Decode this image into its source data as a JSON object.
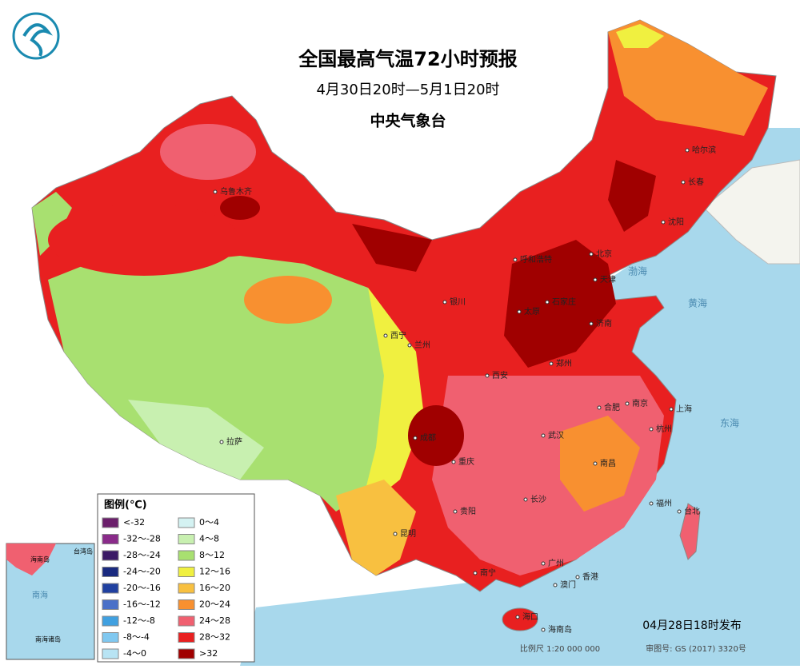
{
  "header": {
    "title": "全国最高气温72小时预报",
    "period": "4月30日20时—5月1日20时",
    "agency": "中央气象台"
  },
  "legend": {
    "title": "图例(℃)",
    "items": [
      {
        "label": "<-32",
        "color": "#6b1f6b"
      },
      {
        "label": "-32～-28",
        "color": "#8a2b8a"
      },
      {
        "label": "-28～-24",
        "color": "#3b1a66"
      },
      {
        "label": "-24～-20",
        "color": "#1a2a80"
      },
      {
        "label": "-20～-16",
        "color": "#2040a0"
      },
      {
        "label": "-16～-12",
        "color": "#4a70c8"
      },
      {
        "label": "-12～-8",
        "color": "#40a0e0"
      },
      {
        "label": "-8～-4",
        "color": "#80c8f0"
      },
      {
        "label": "-4～0",
        "color": "#b8e4f4"
      },
      {
        "label": "0～4",
        "color": "#d4f2f2"
      },
      {
        "label": "4～8",
        "color": "#c8f0b0"
      },
      {
        "label": "8～12",
        "color": "#a8e070"
      },
      {
        "label": "12～16",
        "color": "#f0f040"
      },
      {
        "label": "16～20",
        "color": "#f8c040"
      },
      {
        "label": "20～24",
        "color": "#f89030"
      },
      {
        "label": "24～28",
        "color": "#f06070"
      },
      {
        "label": "28～32",
        "color": "#e82020"
      },
      {
        "label": ">32",
        "color": "#a00000"
      }
    ]
  },
  "cities": [
    "乌鲁木齐",
    "拉萨",
    "西宁",
    "兰州",
    "银川",
    "呼和浩特",
    "北京",
    "天津",
    "石家庄",
    "太原",
    "济南",
    "郑州",
    "西安",
    "成都",
    "重庆",
    "贵阳",
    "昆明",
    "南宁",
    "海口",
    "广州",
    "香港",
    "澳门",
    "长沙",
    "武汉",
    "南昌",
    "合肥",
    "南京",
    "上海",
    "杭州",
    "福州",
    "台北",
    "沈阳",
    "长春",
    "哈尔滨",
    "海南岛"
  ],
  "seas": [
    "渤海",
    "黄海",
    "东海"
  ],
  "inset": {
    "labels": [
      "台湾岛",
      "海南岛",
      "南海",
      "南海诸岛"
    ]
  },
  "footer": {
    "issued": "04月28日18时发布",
    "scale": "比例尺 1:20 000 000",
    "approval": "审图号: GS (2017) 3320号"
  }
}
